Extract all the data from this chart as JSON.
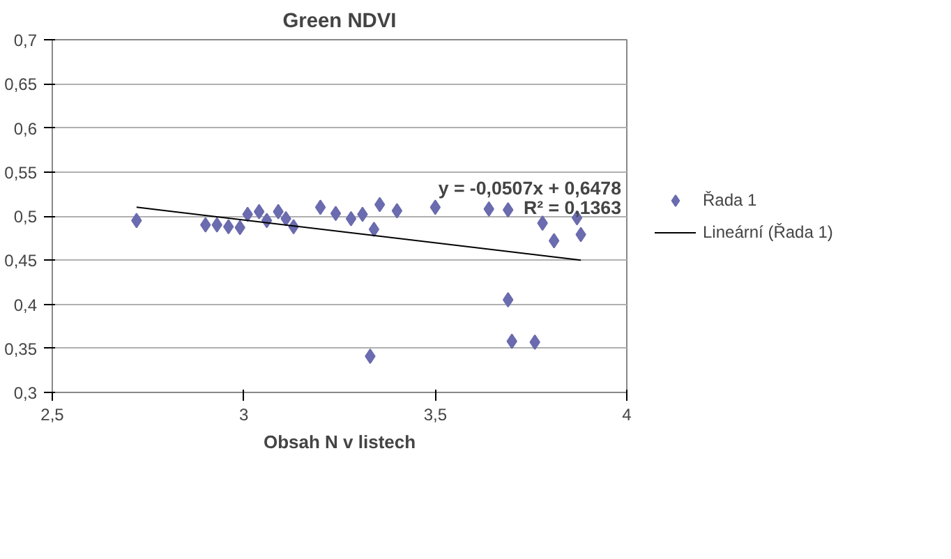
{
  "chart_data": {
    "type": "scatter",
    "title": "Green NDVI",
    "xlabel": "Obsah N v listech",
    "xlim": [
      2.5,
      4
    ],
    "xticks": [
      {
        "value": 2.5,
        "label": "2,5"
      },
      {
        "value": 3,
        "label": "3"
      },
      {
        "value": 3.5,
        "label": "3,5"
      },
      {
        "value": 4,
        "label": "4"
      }
    ],
    "ylim": [
      0.3,
      0.7
    ],
    "yticks": [
      {
        "value": 0.3,
        "label": "0,3"
      },
      {
        "value": 0.35,
        "label": "0,35"
      },
      {
        "value": 0.4,
        "label": "0,4"
      },
      {
        "value": 0.45,
        "label": "0,45"
      },
      {
        "value": 0.5,
        "label": "0,5"
      },
      {
        "value": 0.55,
        "label": "0,55"
      },
      {
        "value": 0.6,
        "label": "0,6"
      },
      {
        "value": 0.65,
        "label": "0,65"
      },
      {
        "value": 0.7,
        "label": "0,7"
      }
    ],
    "grid": "y",
    "legend": "right",
    "marker": "diamond",
    "series": [
      {
        "name": "Řada 1",
        "color": "#6b6baf",
        "x": [
          2.72,
          2.9,
          2.93,
          2.96,
          2.99,
          3.01,
          3.04,
          3.06,
          3.09,
          3.11,
          3.13,
          3.2,
          3.24,
          3.28,
          3.31,
          3.34,
          3.355,
          3.4,
          3.5,
          3.64,
          3.69,
          3.78,
          3.81,
          3.87,
          3.88,
          3.69,
          3.7,
          3.76,
          3.33
        ],
        "values": [
          0.495,
          0.49,
          0.49,
          0.488,
          0.487,
          0.502,
          0.505,
          0.495,
          0.505,
          0.497,
          0.488,
          0.51,
          0.503,
          0.497,
          0.502,
          0.485,
          0.513,
          0.506,
          0.51,
          0.508,
          0.507,
          0.492,
          0.472,
          0.498,
          0.479,
          0.405,
          0.358,
          0.357,
          0.341
        ]
      },
      {
        "name": "Lineární (Řada 1)",
        "color": "#000000",
        "type": "line",
        "marker": "none",
        "x": [
          2.72,
          3.88
        ],
        "values": [
          0.51,
          0.45
        ]
      }
    ],
    "annotations": [
      "y = -0,0507x + 0,6478",
      "R² = 0,1363"
    ]
  }
}
